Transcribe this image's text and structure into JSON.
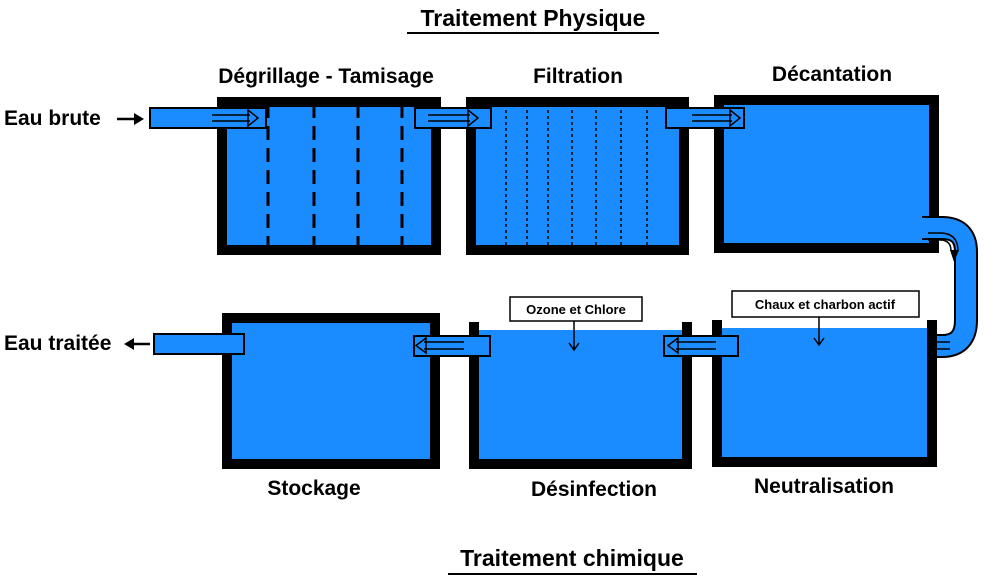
{
  "titles": {
    "top": "Traitement Physique",
    "bottom": "Traitement chimique"
  },
  "io": {
    "input": "Eau brute",
    "output": "Eau traitée"
  },
  "stages": {
    "degrillage": "Dégrillage - Tamisage",
    "filtration": "Filtration",
    "decantation": "Décantation",
    "neutralisation": "Neutralisation",
    "desinfection": "Désinfection",
    "stockage": "Stockage"
  },
  "additives": {
    "desinfection": "Ozone et Chlore",
    "neutralisation": "Chaux et charbon actif"
  },
  "colors": {
    "water": "#1a8cff",
    "wall": "#000000"
  }
}
